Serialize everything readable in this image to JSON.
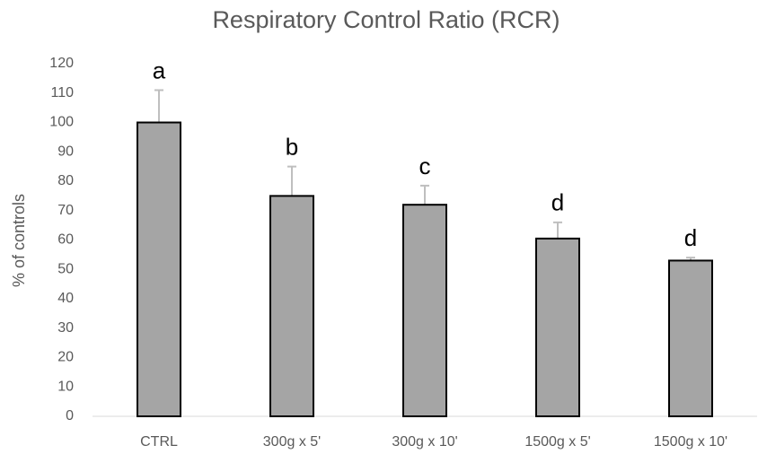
{
  "chart_data": {
    "type": "bar",
    "title": "Respiratory Control Ratio (RCR)",
    "ylabel": "% of controls",
    "categories": [
      "CTRL",
      "300g x 5'",
      "300g x 10'",
      "1500g x 5'",
      "1500g x 10'"
    ],
    "values": [
      100,
      75,
      72,
      60.5,
      53
    ],
    "errors": [
      11,
      10,
      6.5,
      5.5,
      1
    ],
    "annotations": [
      "a",
      "b",
      "c",
      "d",
      "d"
    ],
    "color": "#a5a5a5",
    "error_color": "#bfbfbf",
    "ylim": [
      0,
      120
    ],
    "yticks": [
      0,
      10,
      20,
      30,
      40,
      50,
      60,
      70,
      80,
      90,
      100,
      110,
      120
    ]
  }
}
